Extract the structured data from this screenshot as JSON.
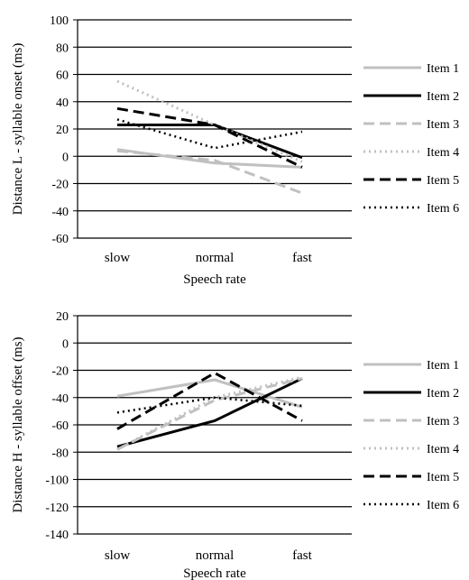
{
  "chart_data": [
    {
      "type": "line",
      "ylabel": "Distance L - syllable onset (ms)",
      "xlabel": "Speech rate",
      "categories": [
        "slow",
        "normal",
        "fast"
      ],
      "ylim": [
        -60,
        100
      ],
      "yticks": [
        100,
        80,
        60,
        40,
        20,
        0,
        -20,
        -40,
        -60
      ],
      "grid": true,
      "legend_position": "right",
      "series": [
        {
          "name": "Item 1",
          "values": [
            5,
            -5,
            -8
          ],
          "color": "#c0c0c0",
          "dash": "solid",
          "width": 3
        },
        {
          "name": "Item 2",
          "values": [
            23,
            23,
            -1
          ],
          "color": "#000000",
          "dash": "solid",
          "width": 3
        },
        {
          "name": "Item 3",
          "values": [
            4,
            -3,
            -27
          ],
          "color": "#c0c0c0",
          "dash": "dashed",
          "width": 3
        },
        {
          "name": "Item 4",
          "values": [
            55,
            23,
            -4
          ],
          "color": "#c0c0c0",
          "dash": "dotted",
          "width": 3
        },
        {
          "name": "Item 5",
          "values": [
            35,
            23,
            -8
          ],
          "color": "#000000",
          "dash": "dashed",
          "width": 3
        },
        {
          "name": "Item 6",
          "values": [
            27,
            6,
            18
          ],
          "color": "#000000",
          "dash": "dotted",
          "width": 2.5
        }
      ]
    },
    {
      "type": "line",
      "ylabel": "Distance H - syllable offset (ms)",
      "xlabel": "Speech rate",
      "categories": [
        "slow",
        "normal",
        "fast"
      ],
      "ylim": [
        -140,
        20
      ],
      "yticks": [
        20,
        0,
        -20,
        -40,
        -60,
        -80,
        -100,
        -120,
        -140
      ],
      "grid": true,
      "legend_position": "right",
      "series": [
        {
          "name": "Item 1",
          "values": [
            -39,
            -27,
            -47
          ],
          "color": "#c0c0c0",
          "dash": "solid",
          "width": 3
        },
        {
          "name": "Item 2",
          "values": [
            -76,
            -57,
            -26
          ],
          "color": "#000000",
          "dash": "solid",
          "width": 3
        },
        {
          "name": "Item 3",
          "values": [
            -78,
            -42,
            -26
          ],
          "color": "#c0c0c0",
          "dash": "dashed",
          "width": 3
        },
        {
          "name": "Item 4",
          "values": [
            -78,
            -40,
            -25
          ],
          "color": "#c0c0c0",
          "dash": "dotted",
          "width": 3
        },
        {
          "name": "Item 5",
          "values": [
            -63,
            -22,
            -57
          ],
          "color": "#000000",
          "dash": "dashed",
          "width": 3
        },
        {
          "name": "Item 6",
          "values": [
            -51,
            -40,
            -46
          ],
          "color": "#000000",
          "dash": "dotted",
          "width": 2.5
        }
      ]
    }
  ]
}
